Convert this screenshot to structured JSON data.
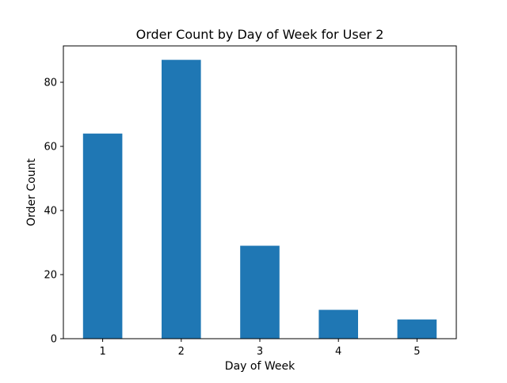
{
  "chart_data": {
    "type": "bar",
    "title": "Order Count by Day of Week for User 2",
    "xlabel": "Day of Week",
    "ylabel": "Order Count",
    "categories": [
      "1",
      "2",
      "3",
      "4",
      "5"
    ],
    "values": [
      64,
      87,
      29,
      9,
      6
    ],
    "ylim": [
      0,
      91.35
    ],
    "yticks": [
      0,
      20,
      40,
      60,
      80
    ],
    "grid": false,
    "legend": "none",
    "bar_color": "#1f77b4"
  }
}
